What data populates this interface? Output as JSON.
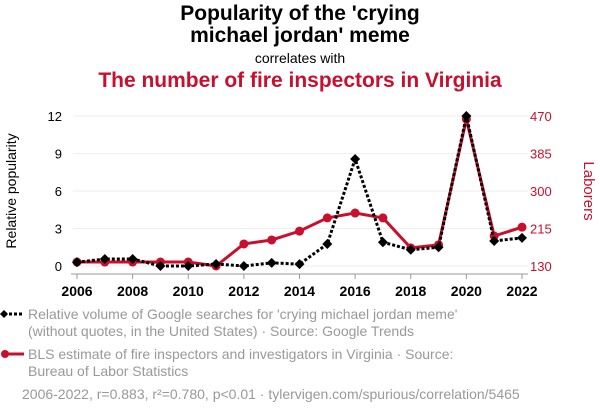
{
  "title": {
    "line1": "Popularity of the 'crying",
    "line2": "michael jordan' meme",
    "connector": "correlates with",
    "line3": "The number of fire inspectors in Virginia"
  },
  "chart_data": {
    "type": "line",
    "x": [
      2006,
      2007,
      2008,
      2009,
      2010,
      2011,
      2012,
      2013,
      2014,
      2015,
      2016,
      2017,
      2018,
      2019,
      2020,
      2021,
      2022
    ],
    "xticks": [
      "2006",
      "2008",
      "2010",
      "2012",
      "2014",
      "2016",
      "2018",
      "2020",
      "2022"
    ],
    "ylabel": "Relative popularity",
    "ylim": [
      0,
      12
    ],
    "yticks": [
      "0",
      "3",
      "6",
      "9",
      "12"
    ],
    "y2label": "Laborers",
    "y2lim": [
      130,
      470
    ],
    "y2ticks": [
      "130",
      "215",
      "300",
      "385",
      "470"
    ],
    "grid": true,
    "series": [
      {
        "name": "Relative volume of Google searches for 'crying michael jordan meme' (without quotes, in the United States) · Source: Google Trends",
        "axis": "left",
        "color": "#000000",
        "style": "dotted",
        "marker": "diamond",
        "values": [
          0.3,
          0.56,
          0.56,
          0,
          0,
          0.16,
          0,
          0.25,
          0.15,
          1.76,
          8.56,
          1.9,
          1.3,
          1.5,
          12,
          2,
          2.25
        ]
      },
      {
        "name": "BLS estimate of fire inspectors and investigators in Virginia · Source: Bureau of Labor Statistics",
        "axis": "right",
        "color": "#c8102e",
        "style": "solid",
        "marker": "circle",
        "values": [
          139,
          139,
          139,
          139,
          139,
          130,
          180,
          189,
          209,
          239,
          250,
          239,
          171,
          178,
          463,
          198,
          218
        ]
      }
    ]
  },
  "legend": {
    "s1_line1": "Relative volume of Google searches for 'crying michael jordan meme'",
    "s1_line2": "(without quotes, in the United States) · Source: Google Trends",
    "s2_line1": "BLS estimate of fire inspectors and investigators in Virginia · Source:",
    "s2_line2": "Bureau of Labor Statistics"
  },
  "footer": "2006-2022, r=0.883, r²=0.780, p<0.01 · tylervigen.com/spurious/correlation/5465"
}
